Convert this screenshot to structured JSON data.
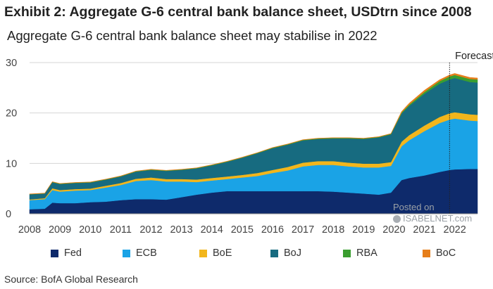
{
  "title": "Exhibit 2: Aggregate G-6 central bank balance sheet, USDtrn since 2008",
  "subtitle": "Aggregate G-6 central bank balance sheet may stabilise in 2022",
  "source": "Source: BofA Global Research",
  "watermark": {
    "line1": "Posted on",
    "line2": "ISABELNET.com"
  },
  "chart_data": {
    "type": "area",
    "stacked": true,
    "ylim": [
      0,
      30
    ],
    "yticks": [
      0,
      10,
      20,
      30
    ],
    "xlim": [
      2008,
      2022.75
    ],
    "xticks": [
      "2008",
      "2009",
      "2010",
      "2011",
      "2012",
      "2013",
      "2014",
      "2015",
      "2016",
      "2017",
      "2018",
      "2019",
      "2020",
      "2021",
      "2022"
    ],
    "grid": true,
    "legend_position": "bottom",
    "annotations": [
      {
        "text": "Forecast",
        "x": 2021.83
      }
    ],
    "x": [
      2008.0,
      2008.5,
      2008.75,
      2009.0,
      2009.5,
      2010.0,
      2010.5,
      2011.0,
      2011.5,
      2012.0,
      2012.5,
      2013.0,
      2013.5,
      2014.0,
      2014.5,
      2015.0,
      2015.5,
      2016.0,
      2016.5,
      2017.0,
      2017.5,
      2018.0,
      2018.5,
      2019.0,
      2019.5,
      2019.9,
      2020.25,
      2020.5,
      2021.0,
      2021.5,
      2021.83,
      2022.0,
      2022.5,
      2022.75
    ],
    "series": [
      {
        "name": "Fed",
        "color": "#0e2a6b",
        "values": [
          0.9,
          1.0,
          2.2,
          2.1,
          2.1,
          2.3,
          2.4,
          2.7,
          2.9,
          2.9,
          2.8,
          3.3,
          3.8,
          4.2,
          4.5,
          4.5,
          4.5,
          4.5,
          4.5,
          4.5,
          4.5,
          4.4,
          4.2,
          4.0,
          3.8,
          4.2,
          6.7,
          7.1,
          7.6,
          8.3,
          8.7,
          8.8,
          8.9,
          8.9
        ]
      },
      {
        "name": "ECB",
        "color": "#1aa3e6",
        "values": [
          1.8,
          1.9,
          2.5,
          2.3,
          2.5,
          2.4,
          2.8,
          3.0,
          3.6,
          3.8,
          3.6,
          3.1,
          2.5,
          2.4,
          2.4,
          2.7,
          3.0,
          3.6,
          4.1,
          4.9,
          5.2,
          5.3,
          5.2,
          5.2,
          5.4,
          5.3,
          6.7,
          7.5,
          8.8,
          9.7,
          10.0,
          10.1,
          9.6,
          9.5
        ]
      },
      {
        "name": "BoE",
        "color": "#f2b61c",
        "values": [
          0.15,
          0.2,
          0.35,
          0.3,
          0.3,
          0.3,
          0.35,
          0.4,
          0.45,
          0.5,
          0.5,
          0.5,
          0.5,
          0.5,
          0.5,
          0.5,
          0.6,
          0.6,
          0.7,
          0.75,
          0.75,
          0.75,
          0.75,
          0.75,
          0.75,
          0.75,
          0.9,
          1.0,
          1.1,
          1.2,
          1.25,
          1.25,
          1.25,
          1.25
        ]
      },
      {
        "name": "BoJ",
        "color": "#176b80",
        "values": [
          1.0,
          0.9,
          1.2,
          1.2,
          1.2,
          1.2,
          1.2,
          1.3,
          1.4,
          1.5,
          1.6,
          1.8,
          2.2,
          2.5,
          2.9,
          3.4,
          3.9,
          4.3,
          4.4,
          4.4,
          4.4,
          4.5,
          4.8,
          4.9,
          5.2,
          5.5,
          5.6,
          5.8,
          6.3,
          6.6,
          6.7,
          6.8,
          6.4,
          6.4
        ]
      },
      {
        "name": "RBA",
        "color": "#3a9e2f",
        "values": [
          0.05,
          0.05,
          0.07,
          0.07,
          0.07,
          0.07,
          0.07,
          0.07,
          0.08,
          0.08,
          0.08,
          0.08,
          0.08,
          0.08,
          0.08,
          0.08,
          0.08,
          0.1,
          0.1,
          0.1,
          0.1,
          0.1,
          0.1,
          0.1,
          0.1,
          0.12,
          0.2,
          0.25,
          0.35,
          0.5,
          0.6,
          0.6,
          0.6,
          0.6
        ]
      },
      {
        "name": "BoC",
        "color": "#e67e1a",
        "values": [
          0.05,
          0.05,
          0.05,
          0.05,
          0.05,
          0.05,
          0.05,
          0.05,
          0.05,
          0.05,
          0.05,
          0.05,
          0.05,
          0.05,
          0.05,
          0.05,
          0.05,
          0.05,
          0.05,
          0.05,
          0.05,
          0.05,
          0.05,
          0.05,
          0.05,
          0.05,
          0.2,
          0.3,
          0.35,
          0.3,
          0.3,
          0.3,
          0.3,
          0.3
        ]
      }
    ]
  }
}
